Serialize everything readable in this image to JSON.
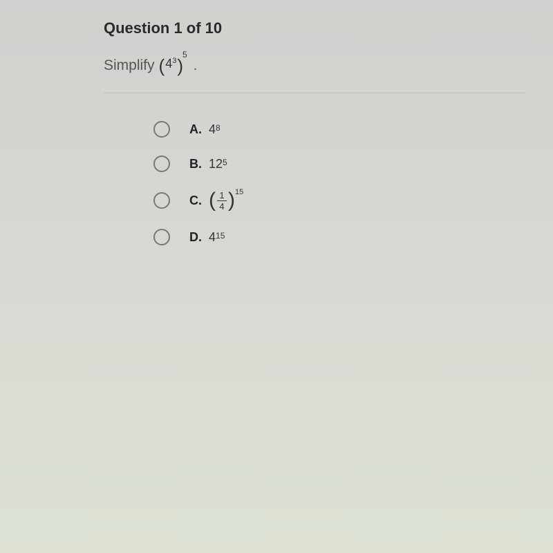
{
  "header": "Question 1 of 10",
  "prompt_word": "Simplify",
  "expression": {
    "base": "4",
    "inner_exp": "3",
    "outer_exp": "5"
  },
  "options": [
    {
      "letter": "A.",
      "type": "power",
      "base": "4",
      "exp": "8"
    },
    {
      "letter": "B.",
      "type": "power",
      "base": "12",
      "exp": "5"
    },
    {
      "letter": "C.",
      "type": "fracpower",
      "num": "1",
      "den": "4",
      "exp": "15"
    },
    {
      "letter": "D.",
      "type": "power",
      "base": "4",
      "exp": "15"
    }
  ]
}
